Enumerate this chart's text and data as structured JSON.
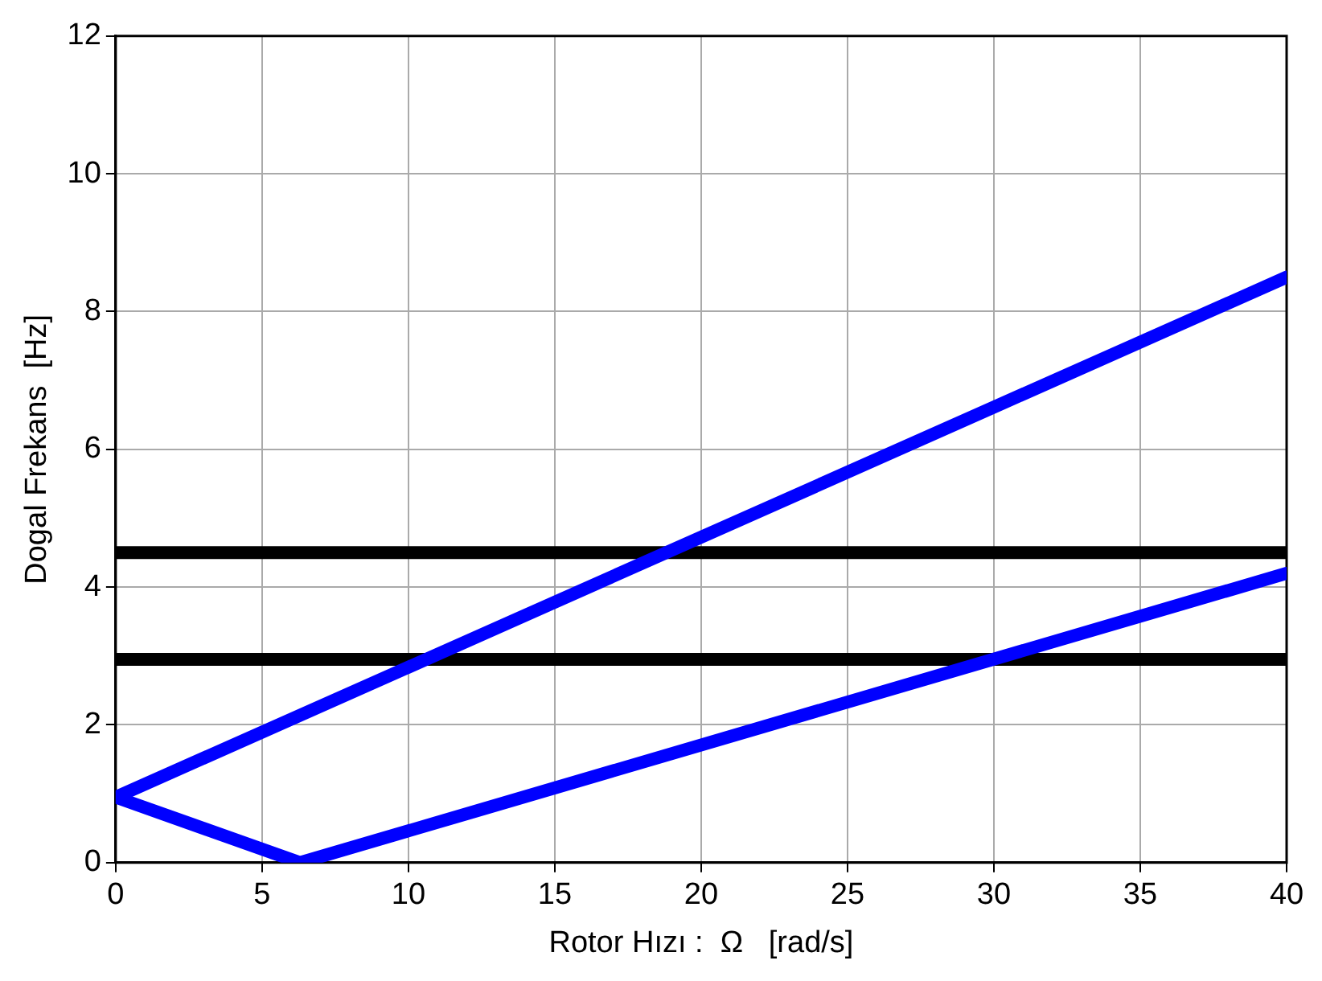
{
  "chart_data": {
    "type": "line",
    "xlabel": "Rotor Hızı :  Ω   [rad/s]",
    "ylabel": "Dogal Frekans  [Hz]",
    "series": [
      {
        "color": "#0000ff",
        "x": [
          0,
          40
        ],
        "values": [
          0.95,
          8.5
        ]
      },
      {
        "color": "#0000ff",
        "x": [
          0,
          6.3,
          40
        ],
        "values": [
          0.95,
          0,
          4.2
        ]
      },
      {
        "color": "#000000",
        "x": [
          0,
          40
        ],
        "values": [
          4.5,
          4.5
        ]
      },
      {
        "color": "#000000",
        "x": [
          0,
          40
        ],
        "values": [
          2.95,
          2.95
        ]
      }
    ],
    "xlim": [
      0,
      40
    ],
    "xticks": [
      0,
      5,
      10,
      15,
      20,
      25,
      30,
      35,
      40
    ],
    "ylim": [
      0,
      12
    ],
    "yticks": [
      0,
      2,
      4,
      6,
      8,
      10,
      12
    ],
    "grid": true,
    "legend": false,
    "line_style": "solid"
  }
}
